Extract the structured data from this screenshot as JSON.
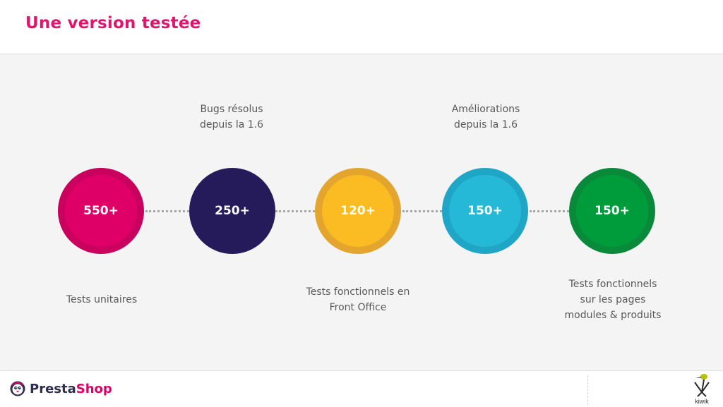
{
  "header": {
    "title": "Une version testée"
  },
  "stats": [
    {
      "value": "550+",
      "color": "#df0067",
      "ring": "#c9005d",
      "caption_below": [
        "Tests unitaires"
      ]
    },
    {
      "value": "250+",
      "color": "#251b5b",
      "ring": "#251b5b",
      "caption_above": [
        "Bugs résolus",
        "depuis la 1.6"
      ]
    },
    {
      "value": "120+",
      "color": "#fbbb22",
      "ring": "#e4a52e",
      "caption_below": [
        "Tests fonctionnels en",
        "Front Office"
      ]
    },
    {
      "value": "150+",
      "color": "#25b9d7",
      "ring": "#1fa6c7",
      "caption_above": [
        "Améliorations",
        "depuis la 1.6"
      ]
    },
    {
      "value": "150+",
      "color": "#009c3b",
      "ring": "#088a3a",
      "caption_below": [
        "Tests fonctionnels",
        "sur les pages",
        "modules & produits"
      ]
    }
  ],
  "footer": {
    "prestashop_logo": {
      "part1": "Presta",
      "part2": "Shop",
      "icon": "prestashop-penguin-icon"
    },
    "kiwik_logo": {
      "text": "kiwik",
      "icon": "kiwik-bird-icon"
    }
  }
}
